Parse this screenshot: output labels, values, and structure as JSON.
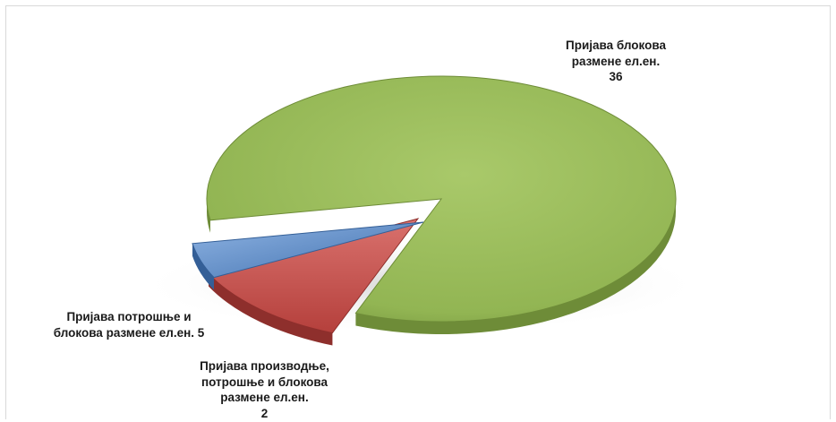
{
  "chart_data": {
    "type": "pie",
    "style": "3d-exploded",
    "legend": "none",
    "slices": [
      {
        "label_lines": [
          "Пријава блокова",
          "размене ел.ен.",
          "36"
        ],
        "value": 36,
        "color": "#9bbb59"
      },
      {
        "label_lines": [
          "Пријава потрошње и",
          "блокова размене ел.ен. 5"
        ],
        "value": 5,
        "color": "#c0504d"
      },
      {
        "label_lines": [
          "Пријава производње,",
          "потрошње и блокова",
          "размене ел.ен.",
          "2"
        ],
        "value": 2,
        "color": "#4f81bd"
      }
    ]
  }
}
